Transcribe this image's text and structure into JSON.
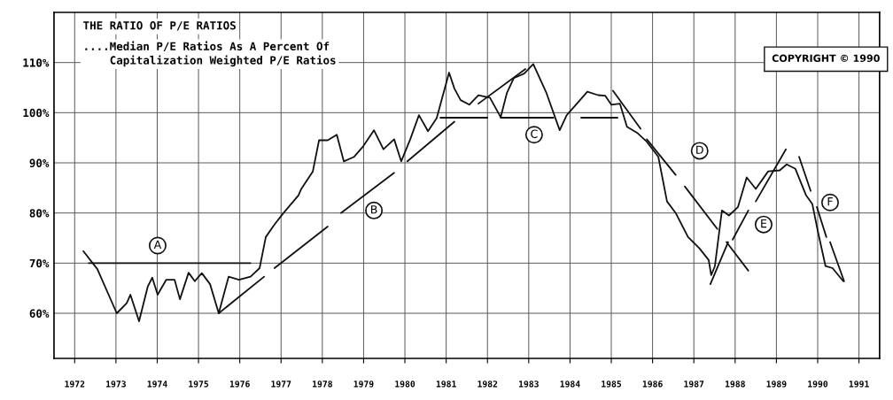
{
  "chart_data": {
    "type": "line",
    "title": "THE RATIO OF P/E RATIOS",
    "subtitle": "....Median P/E Ratios As A Percent Of\n    Capitalization Weighted P/E Ratios",
    "annotations": [
      "COPYRIGHT © 1990",
      {
        "text": "A",
        "x": 1974.51,
        "y": 73.5
      },
      {
        "text": "B",
        "x": 1979.75,
        "y": 80.5
      },
      {
        "text": "C",
        "x": 1983.63,
        "y": 95.6
      },
      {
        "text": "D",
        "x": 1987.64,
        "y": 92.4
      },
      {
        "text": "E",
        "x": 1989.19,
        "y": 77.7
      },
      {
        "text": "F",
        "x": 1990.8,
        "y": 82.1
      }
    ],
    "xlim": [
      1972,
      1992
    ],
    "ylim": [
      51,
      120
    ],
    "xticks": [
      {
        "value": 1972.5,
        "label": "1972"
      },
      {
        "value": 1973.5,
        "label": "1973"
      },
      {
        "value": 1974.5,
        "label": "1974"
      },
      {
        "value": 1975.5,
        "label": "1975"
      },
      {
        "value": 1976.5,
        "label": "1976"
      },
      {
        "value": 1977.5,
        "label": "1977"
      },
      {
        "value": 1978.5,
        "label": "1978"
      },
      {
        "value": 1979.5,
        "label": "1979"
      },
      {
        "value": 1980.5,
        "label": "1980"
      },
      {
        "value": 1981.5,
        "label": "1981"
      },
      {
        "value": 1982.5,
        "label": "1982"
      },
      {
        "value": 1983.5,
        "label": "1983"
      },
      {
        "value": 1984.5,
        "label": "1984"
      },
      {
        "value": 1985.5,
        "label": "1985"
      },
      {
        "value": 1986.5,
        "label": "1986"
      },
      {
        "value": 1987.5,
        "label": "1987"
      },
      {
        "value": 1988.5,
        "label": "1988"
      },
      {
        "value": 1989.5,
        "label": "1989"
      },
      {
        "value": 1990.5,
        "label": "1990"
      },
      {
        "value": 1991.5,
        "label": "1991"
      }
    ],
    "yticks": [
      {
        "value": 60,
        "label": "60%"
      },
      {
        "value": 70,
        "label": "70%"
      },
      {
        "value": 80,
        "label": "80%"
      },
      {
        "value": 90,
        "label": "90%"
      },
      {
        "value": 100,
        "label": "100%"
      },
      {
        "value": 110,
        "label": "110%"
      }
    ],
    "grid": true,
    "legend": false,
    "marker": "none",
    "line_style": "solid",
    "series": [
      {
        "color": "#111111",
        "x": [
          1972.71,
          1973.05,
          1973.52,
          1973.76,
          1973.85,
          1974.06,
          1974.27,
          1974.38,
          1974.51,
          1974.72,
          1974.92,
          1975.05,
          1975.26,
          1975.41,
          1975.58,
          1975.78,
          1975.99,
          1976.23,
          1976.48,
          1976.76,
          1976.98,
          1977.13,
          1977.34,
          1977.56,
          1977.92,
          1977.99,
          1978.27,
          1978.42,
          1978.63,
          1978.85,
          1979.02,
          1979.27,
          1979.49,
          1979.75,
          1979.98,
          1980.24,
          1980.41,
          1980.63,
          1980.84,
          1981.06,
          1981.27,
          1981.57,
          1981.7,
          1981.85,
          1982.06,
          1982.28,
          1982.56,
          1982.82,
          1982.97,
          1983.14,
          1983.39,
          1983.61,
          1983.93,
          1984.25,
          1984.42,
          1984.7,
          1984.92,
          1985.18,
          1985.35,
          1985.5,
          1985.71,
          1985.88,
          1986.14,
          1986.36,
          1986.64,
          1986.85,
          1987.06,
          1987.36,
          1987.64,
          1987.86,
          1987.92,
          1988.01,
          1988.18,
          1988.35,
          1988.57,
          1988.78,
          1989.0,
          1989.3,
          1989.58,
          1989.75,
          1989.96,
          1990.22,
          1990.37,
          1990.5,
          1990.69,
          1990.86,
          1991.12
        ],
        "values": [
          72.4,
          68.8,
          60,
          62,
          63.7,
          58.4,
          65.3,
          67.1,
          63.7,
          66.7,
          66.7,
          62.8,
          68.1,
          66.4,
          68,
          65.8,
          60,
          67.3,
          66.7,
          67.3,
          69,
          75.2,
          77.7,
          80,
          83.5,
          84.8,
          88.3,
          94.5,
          94.5,
          95.6,
          90.3,
          91.2,
          93.3,
          96.5,
          92.7,
          94.7,
          90.3,
          94.7,
          99.5,
          96.3,
          98.9,
          108,
          104.8,
          102.5,
          101.6,
          103.5,
          103,
          99.1,
          103.9,
          106.9,
          107.8,
          109.7,
          103.9,
          96.5,
          99.5,
          102.1,
          104.2,
          103.5,
          103.4,
          101.6,
          101.8,
          97.2,
          95.9,
          94.2,
          91.2,
          82.3,
          80,
          75.2,
          72.9,
          70.6,
          67.6,
          69.4,
          80.5,
          79.5,
          81.2,
          87.1,
          84.8,
          88.3,
          88.5,
          89.7,
          88.8,
          83.5,
          81.8,
          76.5,
          69.4,
          69,
          66.4
        ]
      },
      {
        "color": "#111111",
        "x": [
          1972.84,
          1976.76
        ],
        "values": [
          70,
          70
        ]
      },
      {
        "color": "#111111",
        "x": [
          1975.99,
          1977.09
        ],
        "values": [
          60,
          67.3
        ]
      },
      {
        "color": "#111111",
        "x": [
          1977.34,
          1978.63
        ],
        "values": [
          69,
          77.3
        ]
      },
      {
        "color": "#111111",
        "x": [
          1978.95,
          1980.24
        ],
        "values": [
          80,
          88
        ]
      },
      {
        "color": "#111111",
        "x": [
          1980.56,
          1981.7
        ],
        "values": [
          90.3,
          98.2
        ]
      },
      {
        "color": "#111111",
        "x": [
          1982.28,
          1983.42
        ],
        "values": [
          101.8,
          108.7
        ]
      },
      {
        "color": "#111111",
        "x": [
          1981.36,
          1982.5
        ],
        "values": [
          99,
          99
        ]
      },
      {
        "color": "#111111",
        "x": [
          1982.82,
          1984.1
        ],
        "values": [
          99,
          99
        ]
      },
      {
        "color": "#111111",
        "x": [
          1984.77,
          1985.65
        ],
        "values": [
          99,
          99
        ]
      },
      {
        "color": "#111111",
        "x": [
          1985.54,
          1986.21
        ],
        "values": [
          104.4,
          96.8
        ]
      },
      {
        "color": "#111111",
        "x": [
          1986.36,
          1987.06
        ],
        "values": [
          94.7,
          87.6
        ]
      },
      {
        "color": "#111111",
        "x": [
          1987.28,
          1988.07
        ],
        "values": [
          85.3,
          76.8
        ]
      },
      {
        "color": "#111111",
        "x": [
          1987.9,
          1988.33
        ],
        "values": [
          65.8,
          74.2
        ]
      },
      {
        "color": "#111111",
        "x": [
          1988.29,
          1988.82
        ],
        "values": [
          74.2,
          68.5
        ]
      },
      {
        "color": "#111111",
        "x": [
          1988.44,
          1988.82
        ],
        "values": [
          74.7,
          80.5
        ]
      },
      {
        "color": "#111111",
        "x": [
          1989.0,
          1989.73
        ],
        "values": [
          82.3,
          92.7
        ]
      },
      {
        "color": "#111111",
        "x": [
          1990.05,
          1990.33
        ],
        "values": [
          91.2,
          84.4
        ]
      },
      {
        "color": "#111111",
        "x": [
          1990.48,
          1990.71
        ],
        "values": [
          81.2,
          75.2
        ]
      },
      {
        "color": "#111111",
        "x": [
          1990.8,
          1991.14
        ],
        "values": [
          74.2,
          66.4
        ]
      }
    ]
  }
}
